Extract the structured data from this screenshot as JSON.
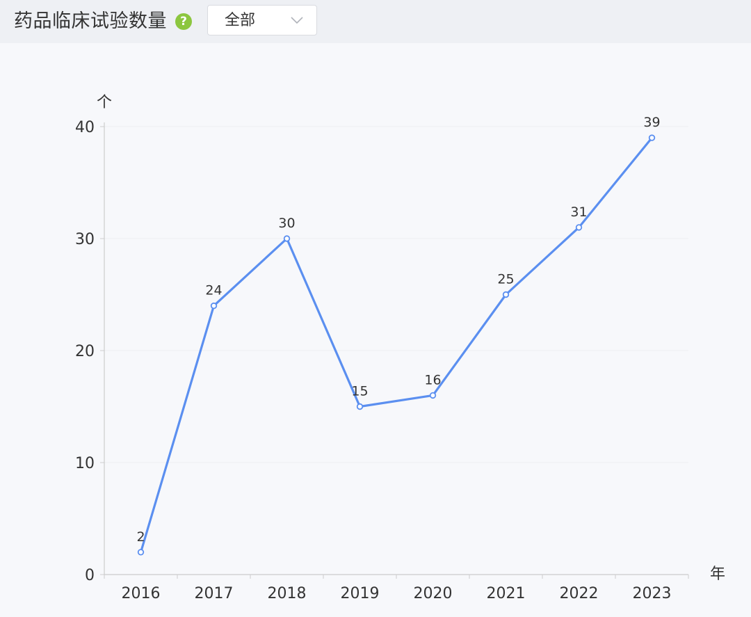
{
  "header": {
    "title": "药品临床试验数量",
    "help_icon": "question-circle-icon",
    "filter": {
      "selected": "全部",
      "icon": "chevron-down-icon"
    }
  },
  "colors": {
    "line": "#5b8ff0",
    "help_icon": "#8cc63f",
    "axis": "#cccccc",
    "grid": "#eceef2",
    "text": "#333333"
  },
  "chart_data": {
    "type": "line",
    "categories": [
      "2016",
      "2017",
      "2018",
      "2019",
      "2020",
      "2021",
      "2022",
      "2023"
    ],
    "series": [
      {
        "values": [
          2,
          24,
          30,
          15,
          16,
          25,
          31,
          39
        ]
      }
    ],
    "xlabel": "年",
    "ylabel": "个",
    "ylim": [
      0,
      40
    ],
    "yticks": [
      0,
      10,
      20,
      30,
      40
    ],
    "grid": true,
    "data_labels": true
  }
}
